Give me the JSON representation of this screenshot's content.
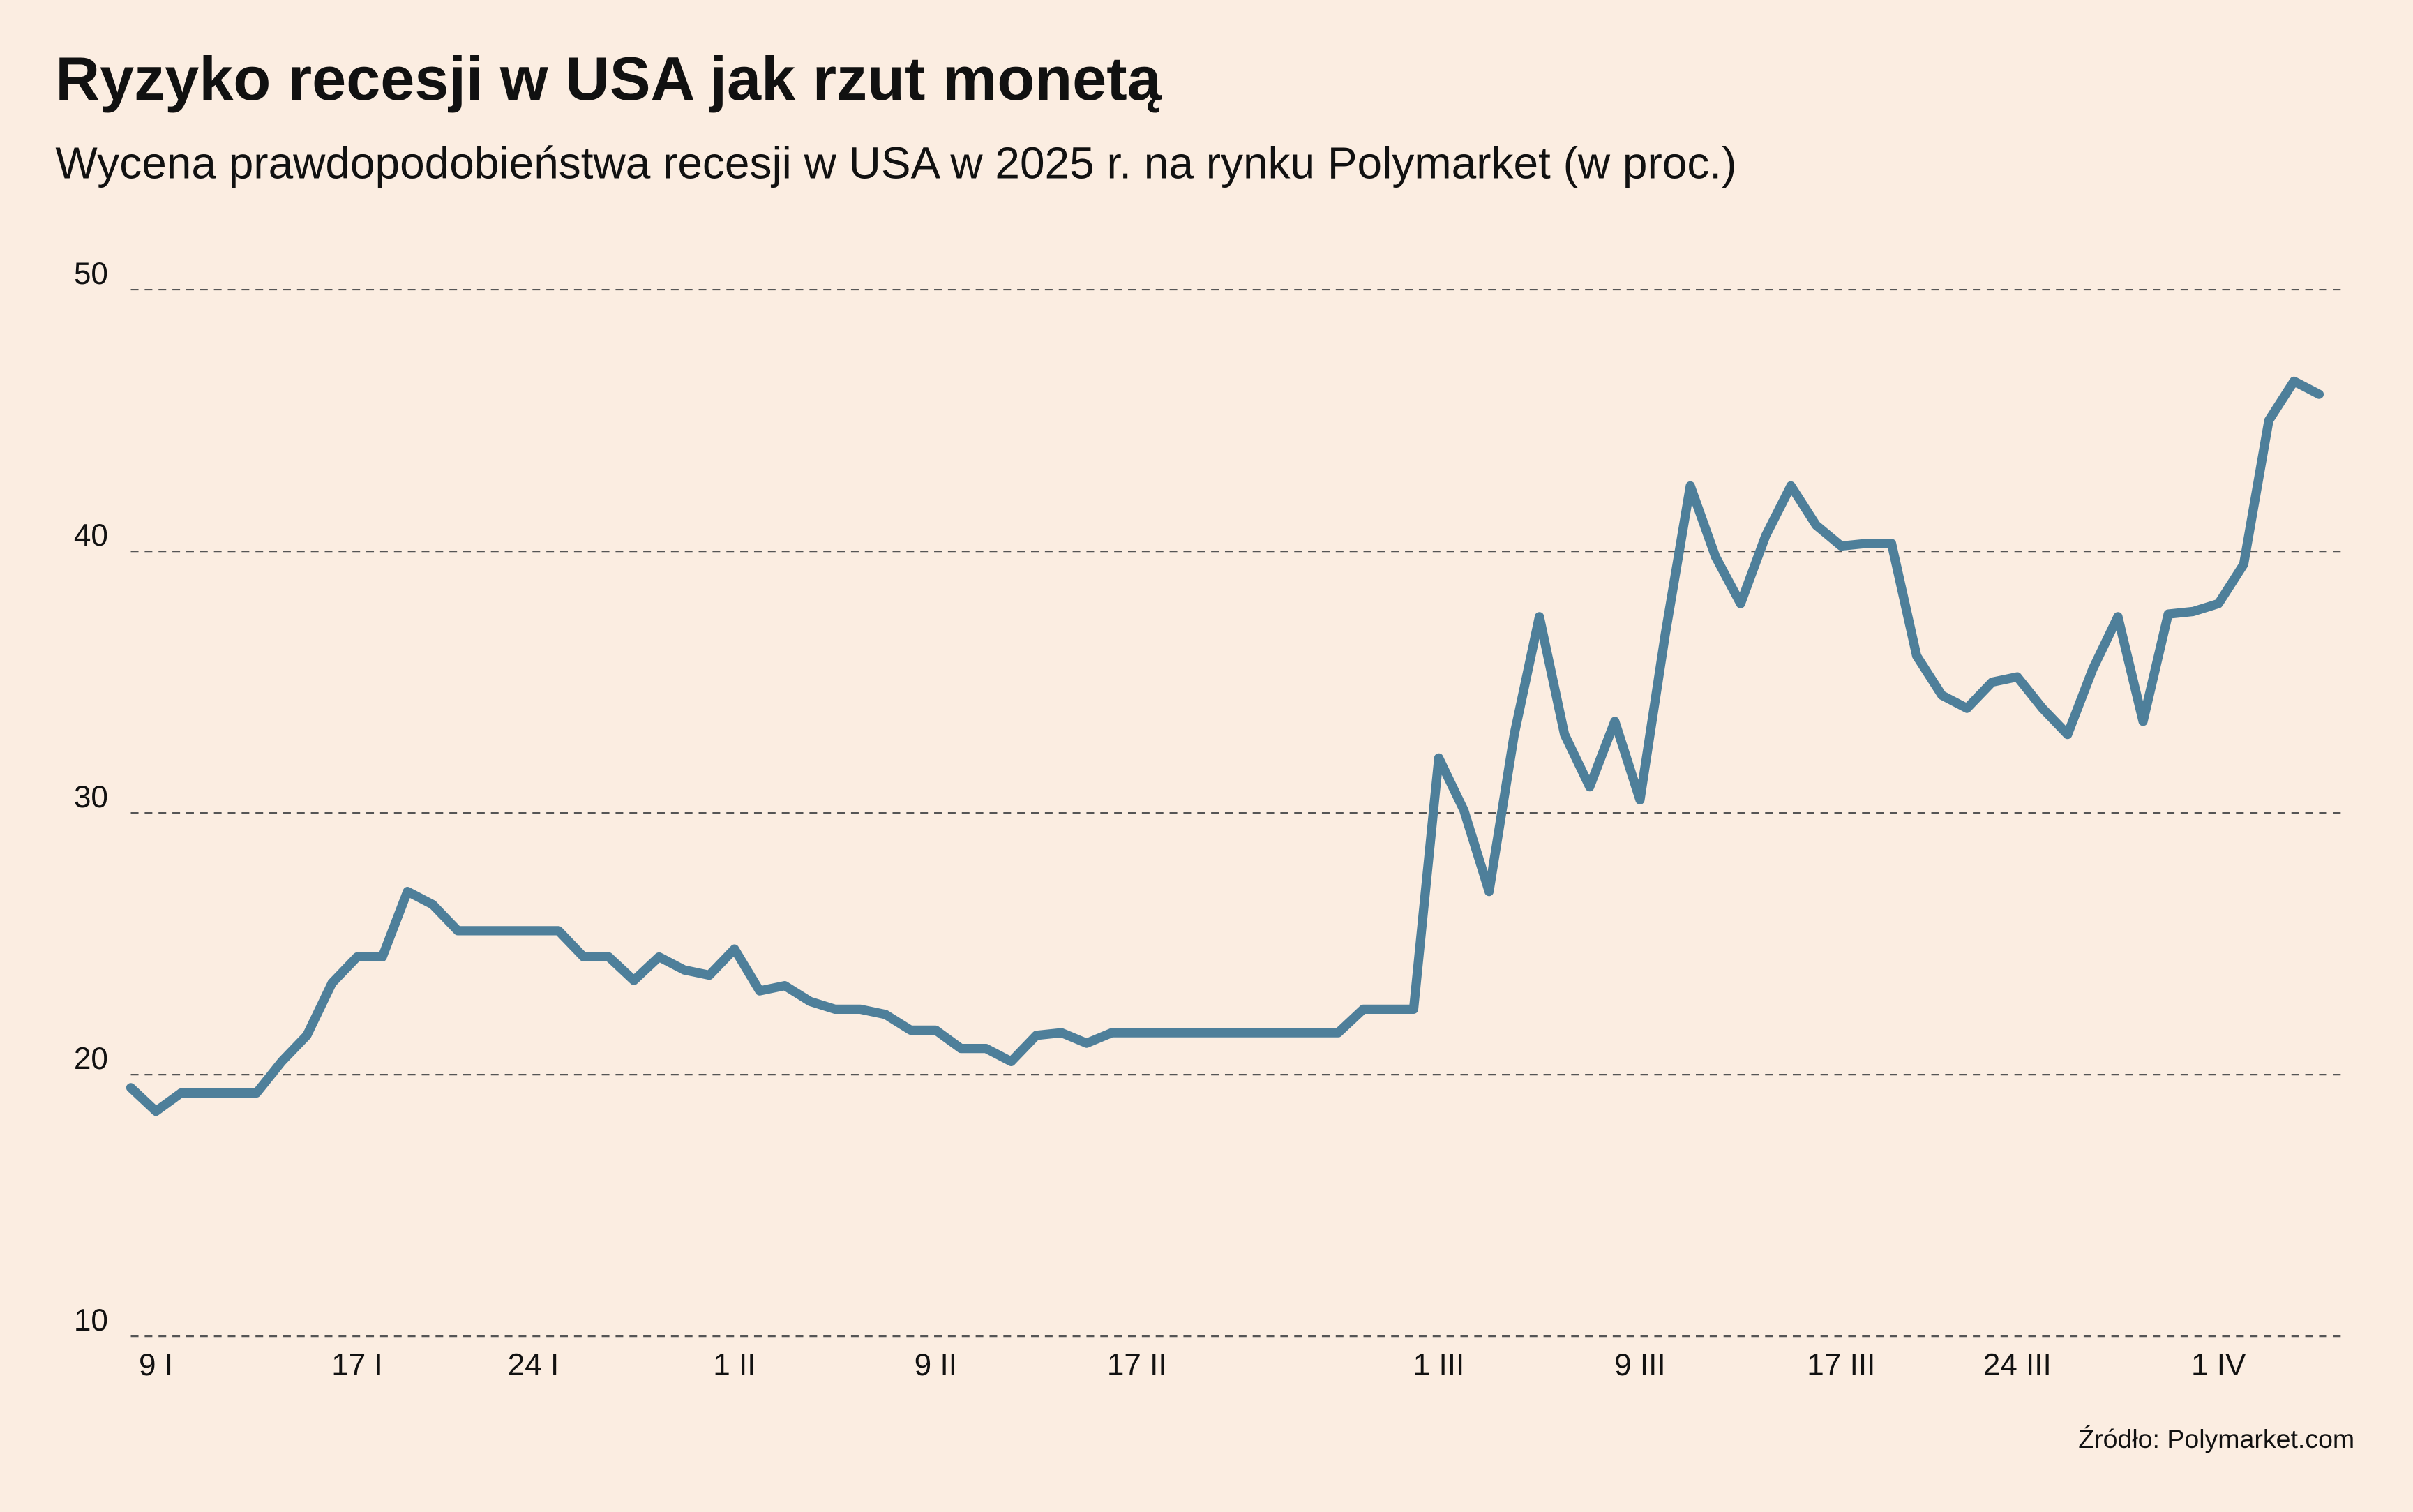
{
  "chart_data": {
    "type": "line",
    "title": "Ryzyko recesji w USA jak rzut monetą",
    "subtitle": "Wycena prawdopodobieństwa recesji w USA w 2025 r. na rynku Polymarket (w proc.)",
    "source": "Źródło: Polymarket.com",
    "categories": [
      null,
      "9 I",
      null,
      null,
      null,
      null,
      null,
      null,
      null,
      "17 I",
      null,
      null,
      null,
      null,
      null,
      null,
      "24 I",
      null,
      null,
      null,
      null,
      null,
      null,
      null,
      "1 II",
      null,
      null,
      null,
      null,
      null,
      null,
      null,
      "9 II",
      null,
      null,
      null,
      null,
      null,
      null,
      null,
      "17 II",
      null,
      null,
      null,
      null,
      null,
      null,
      null,
      null,
      null,
      null,
      null,
      "1 III",
      null,
      null,
      null,
      null,
      null,
      null,
      null,
      "9 III",
      null,
      null,
      null,
      null,
      null,
      null,
      null,
      "17 III",
      null,
      null,
      null,
      null,
      null,
      null,
      "24 III",
      null,
      null,
      null,
      null,
      null,
      null,
      null,
      "1 IV",
      null,
      null,
      null,
      null
    ],
    "series": [
      {
        "name": "Polymarket",
        "color": "#4e7f9a",
        "values": [
          19.5,
          18.6,
          19.3,
          19.3,
          19.3,
          19.3,
          20.5,
          21.5,
          23.5,
          24.5,
          24.5,
          27.0,
          26.5,
          25.5,
          25.5,
          25.5,
          25.5,
          25.5,
          24.5,
          24.5,
          23.6,
          24.5,
          24.0,
          23.8,
          24.8,
          23.2,
          23.4,
          22.8,
          22.5,
          22.5,
          22.3,
          21.7,
          21.7,
          21.0,
          21.0,
          20.5,
          21.5,
          21.6,
          21.2,
          21.6,
          21.6,
          21.6,
          21.6,
          21.6,
          21.6,
          21.6,
          21.6,
          21.6,
          21.6,
          22.5,
          22.5,
          22.5,
          32.1,
          30.1,
          27.0,
          33.0,
          37.5,
          33.0,
          31.0,
          33.5,
          30.5,
          36.8,
          42.5,
          39.8,
          38.0,
          40.6,
          42.5,
          41.0,
          40.2,
          40.3,
          40.3,
          36.0,
          34.5,
          34.0,
          35.0,
          35.2,
          34.0,
          33.0,
          35.5,
          37.5,
          33.5,
          37.6,
          37.7,
          38.0,
          39.5,
          45.0,
          46.5,
          46.0
        ]
      }
    ],
    "ylim": [
      10,
      50
    ],
    "yticks": [
      10,
      20,
      30,
      40,
      50
    ],
    "grid": true
  }
}
